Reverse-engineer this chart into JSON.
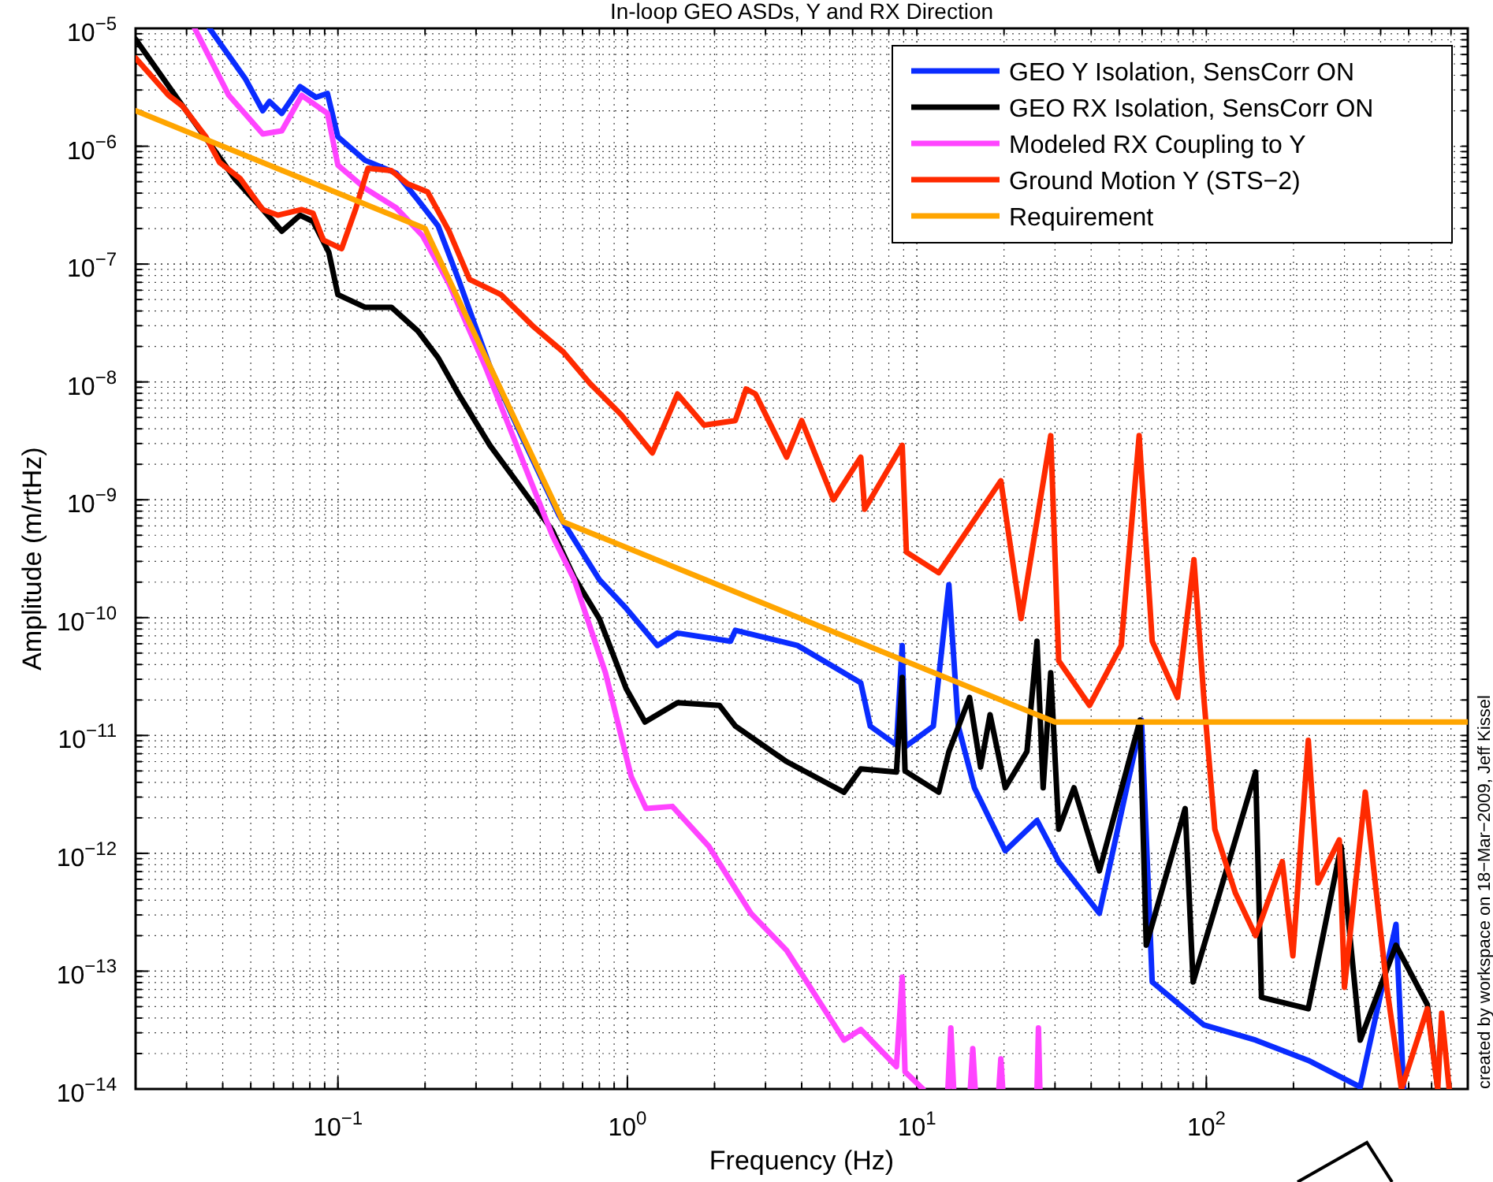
{
  "chart_data": {
    "type": "line",
    "title": "In-loop GEO ASDs, Y and RX Direction",
    "xlabel": "Frequency (Hz)",
    "ylabel": "Amplitude (m/rtHz)",
    "log": "xy",
    "grid": true,
    "legend": "top right",
    "line_style": "solid",
    "marker": "none",
    "xlim": [
      0.02,
      800
    ],
    "ylim": [
      1e-14,
      1e-05
    ],
    "xticks": [
      {
        "value": 0.1,
        "label": "10$^{−1}$"
      },
      {
        "value": 1,
        "label": "10$^{0}$"
      },
      {
        "value": 10,
        "label": "10$^{1}$"
      },
      {
        "value": 100,
        "label": "10$^{2}$"
      }
    ],
    "yticks": [
      {
        "value": 1e-14,
        "label": "10$^{−14}$"
      },
      {
        "value": 1e-13,
        "label": "10$^{−13}$"
      },
      {
        "value": 1e-12,
        "label": "10$^{−12}$"
      },
      {
        "value": 1e-11,
        "label": "10$^{−11}$"
      },
      {
        "value": 1e-10,
        "label": "10$^{−10}$"
      },
      {
        "value": 1e-09,
        "label": "10$^{−9}$"
      },
      {
        "value": 1e-08,
        "label": "10$^{−8}$"
      },
      {
        "value": 1e-07,
        "label": "10$^{−7}$"
      },
      {
        "value": 1e-06,
        "label": "10$^{−6}$"
      },
      {
        "value": 1e-05,
        "label": "10$^{−5}$"
      }
    ],
    "annotations": [
      "created by workspace on 18−Mar−2009, Jeff Kissel"
    ],
    "series": [
      {
        "name": "GEO Y Isolation, SensCorr ON",
        "color": "#0a2cff",
        "x": [
          0.036,
          0.048,
          0.055,
          0.058,
          0.064,
          0.074,
          0.084,
          0.092,
          0.1,
          0.124,
          0.159,
          0.189,
          0.222,
          0.261,
          0.335,
          0.43,
          0.58,
          0.8,
          0.99,
          1.27,
          1.49,
          2.27,
          2.36,
          3.87,
          6.4,
          6.9,
          8.5,
          8.9,
          9.1,
          11.4,
          12.9,
          13.9,
          15.8,
          20.2,
          26,
          30.9,
          42.7,
          59.7,
          65,
          98,
          148,
          225,
          340,
          452,
          480
        ],
        "values": [
          1e-05,
          3.7e-06,
          2e-06,
          2.4e-06,
          1.9e-06,
          3.2e-06,
          2.6e-06,
          2.8e-06,
          1.2e-06,
          7.6e-07,
          5.9e-07,
          3.5e-07,
          2.1e-07,
          7.4e-08,
          1.35e-08,
          3.5e-09,
          7.4e-10,
          2.1e-10,
          1.2e-10,
          5.8e-11,
          7.4e-11,
          6.3e-11,
          7.8e-11,
          5.8e-11,
          2.8e-11,
          1.2e-11,
          8.3e-12,
          5.8e-11,
          8e-12,
          1.2e-11,
          1.9e-10,
          1.2e-11,
          3.6e-12,
          1.05e-12,
          1.9e-12,
          8.5e-13,
          3.1e-13,
          1.35e-11,
          8.1e-14,
          3.5e-14,
          2.6e-14,
          1.75e-14,
          1.04e-14,
          2.5e-13,
          1e-14
        ]
      },
      {
        "name": "GEO RX Isolation, SensCorr ON",
        "color": "#000000",
        "x": [
          0.02,
          0.028,
          0.038,
          0.044,
          0.055,
          0.064,
          0.074,
          0.082,
          0.093,
          0.1,
          0.124,
          0.153,
          0.189,
          0.222,
          0.261,
          0.335,
          0.43,
          0.55,
          0.655,
          0.8,
          0.99,
          1.15,
          1.49,
          2.08,
          2.36,
          3.55,
          5.6,
          6.4,
          8.5,
          8.9,
          9.1,
          11.9,
          12.9,
          15.2,
          16.6,
          17.9,
          20.2,
          24,
          26,
          27.3,
          29,
          30.9,
          34.9,
          42.7,
          59,
          62,
          84.5,
          90,
          148,
          155,
          225,
          292,
          340,
          452,
          580,
          630
        ],
        "values": [
          8.1e-06,
          2.5e-06,
          8.8e-07,
          5.3e-07,
          2.9e-07,
          1.9e-07,
          2.6e-07,
          2.3e-07,
          1.26e-07,
          5.5e-08,
          4.3e-08,
          4.3e-08,
          2.7e-08,
          1.6e-08,
          7.9e-09,
          2.9e-09,
          1.26e-09,
          5.5e-10,
          2.2e-10,
          9.8e-11,
          2.5e-11,
          1.3e-11,
          1.9e-11,
          1.8e-11,
          1.2e-11,
          6e-12,
          3.3e-12,
          5.2e-12,
          4.9e-12,
          3.1e-11,
          5e-12,
          3.3e-12,
          7.3e-12,
          2.1e-11,
          5.4e-12,
          1.5e-11,
          3.6e-12,
          7.3e-12,
          6.3e-11,
          3.6e-12,
          3.4e-11,
          1.6e-12,
          3.6e-12,
          7.1e-13,
          1.35e-11,
          1.66e-13,
          2.4e-12,
          8.1e-14,
          4.9e-12,
          6e-14,
          4.8e-14,
          1.15e-12,
          2.6e-14,
          1.66e-13,
          5.2e-14,
          1e-14
        ]
      },
      {
        "name": "Modeled RX Coupling to Y",
        "color": "#ff44ff",
        "x": [
          0.032,
          0.042,
          0.055,
          0.064,
          0.075,
          0.092,
          0.1,
          0.124,
          0.159,
          0.196,
          0.242,
          0.323,
          0.43,
          0.55,
          0.655,
          0.84,
          1.03,
          1.16,
          1.43,
          1.91,
          2.67,
          3.55,
          5.6,
          6.4,
          8.5,
          8.9,
          9.1,
          10.5,
          11,
          12.8,
          13.1,
          13.4,
          14,
          15.3,
          15.6,
          15.9,
          16.5,
          19.2,
          19.5,
          19.8,
          21,
          26,
          26.3,
          26.6
        ],
        "values": [
          1e-05,
          2.7e-06,
          1.27e-06,
          1.35e-06,
          2.7e-06,
          1.9e-06,
          6.9e-07,
          4.4e-07,
          3e-07,
          1.74e-07,
          6.8e-08,
          1.35e-08,
          2.3e-09,
          5e-10,
          2.1e-10,
          3.4e-11,
          4.5e-12,
          2.4e-12,
          2.5e-12,
          1.15e-12,
          3.1e-13,
          1.5e-13,
          2.6e-14,
          3.2e-14,
          1.55e-14,
          8.9e-14,
          1.4e-14,
          1e-14,
          null,
          1e-14,
          3.3e-14,
          1e-14,
          null,
          1e-14,
          2.2e-14,
          1e-14,
          null,
          1e-14,
          1.8e-14,
          1e-14,
          null,
          1e-14,
          3.3e-14,
          1e-14
        ]
      },
      {
        "name": "Ground Motion Y (STS−2)",
        "color": "#ff2a00",
        "x": [
          0.02,
          0.026,
          0.029,
          0.035,
          0.039,
          0.046,
          0.055,
          0.062,
          0.075,
          0.082,
          0.089,
          0.103,
          0.115,
          0.127,
          0.153,
          0.174,
          0.204,
          0.242,
          0.285,
          0.366,
          0.47,
          0.6,
          0.74,
          0.95,
          1.22,
          1.49,
          1.84,
          2.36,
          2.57,
          2.77,
          3.55,
          4,
          5.15,
          6.4,
          6.6,
          8.9,
          9.2,
          11.9,
          19.5,
          22.9,
          29,
          30.9,
          39.5,
          50.8,
          58.6,
          65,
          79.5,
          90.6,
          98,
          107,
          126,
          148,
          183,
          199,
          225,
          243,
          288,
          300,
          354,
          420,
          472,
          580,
          630,
          650,
          690
        ],
        "values": [
          5.6e-06,
          2.7e-06,
          2.2e-06,
          1.2e-06,
          7.3e-07,
          5.3e-07,
          2.9e-07,
          2.6e-07,
          2.9e-07,
          2.7e-07,
          1.6e-07,
          1.35e-07,
          2.9e-07,
          6.5e-07,
          6.2e-07,
          4.8e-07,
          4.1e-07,
          1.9e-07,
          7.4e-08,
          5.5e-08,
          3e-08,
          1.8e-08,
          9.8e-09,
          5.3e-09,
          2.5e-09,
          7.9e-09,
          4.3e-09,
          4.7e-09,
          8.7e-09,
          7.9e-09,
          2.3e-09,
          4.7e-09,
          1e-09,
          2.3e-09,
          8.3e-10,
          2.9e-09,
          3.6e-10,
          2.4e-10,
          1.45e-09,
          9.8e-11,
          3.5e-09,
          4.3e-11,
          1.8e-11,
          5.8e-11,
          3.5e-09,
          6.3e-11,
          2.1e-11,
          3.1e-10,
          2.1e-11,
          1.6e-12,
          4.6e-13,
          2e-13,
          8.5e-13,
          1.35e-13,
          9.1e-12,
          5.6e-13,
          1.3e-12,
          7.3e-14,
          3.3e-12,
          7.3e-14,
          1e-14,
          4.8e-14,
          1e-14,
          4.4e-14,
          1e-14
        ]
      },
      {
        "name": "Requirement",
        "color": "#ffa500",
        "x": [
          0.02,
          0.2,
          0.6,
          30,
          800
        ],
        "values": [
          2e-06,
          2e-07,
          6.5e-10,
          1.3e-11,
          1.3e-11
        ]
      }
    ]
  }
}
